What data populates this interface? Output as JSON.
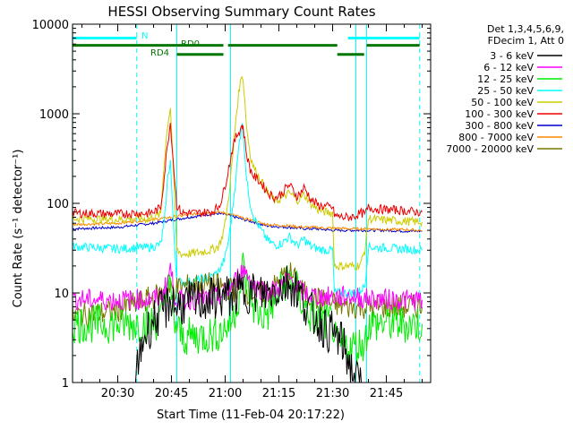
{
  "chart_data": {
    "type": "line",
    "title": "HESSI Observing Summary Count Rates",
    "xlabel": "Start Time (11-Feb-04 20:17:22)",
    "ylabel": "Count Rate (s⁻¹ detector⁻¹)",
    "x_ticks": [
      "20:30",
      "20:45",
      "21:00",
      "21:15",
      "21:30",
      "21:45"
    ],
    "x_tick_minutes": [
      30,
      45,
      60,
      75,
      90,
      105
    ],
    "xlim_minutes": [
      17.37,
      117.37
    ],
    "y_scale": "log",
    "ylim": [
      1,
      10000
    ],
    "y_ticks": [
      "1",
      "10",
      "100",
      "1000",
      "10000"
    ],
    "y_tick_values": [
      1,
      10,
      100,
      1000,
      10000
    ],
    "grid": false,
    "legend": {
      "placement": "right",
      "header": [
        "Det 1,3,4,5,6,9,",
        "FDecim 1, Att 0"
      ],
      "entries": [
        "3 - 6 keV",
        "6 - 12 keV",
        "12 - 25 keV",
        "25 - 50 keV",
        "50 - 100 keV",
        "100 - 300 keV",
        "300 - 800 keV",
        "800 - 7000 keV",
        "7000 - 20000 keV"
      ]
    },
    "colors": {
      "3 - 6 keV": "#000000",
      "6 - 12 keV": "#ff00ff",
      "12 - 25 keV": "#00ee00",
      "25 - 50 keV": "#00ffff",
      "50 - 100 keV": "#cccc00",
      "100 - 300 keV": "#ee0000",
      "300 - 800 keV": "#0000cc",
      "800 - 7000 keV": "#ff8800",
      "7000 - 20000 keV": "#777700",
      "cyan_bar": "#00ffff",
      "green_bar": "#007700"
    },
    "flag_labels": [
      "N",
      "RD0",
      "RD4"
    ],
    "flag_bars": [
      {
        "label": "N",
        "color": "#00ffff",
        "segments": [
          [
            17.4,
            35.3
          ],
          [
            94.3,
            114.3
          ]
        ],
        "level": 7000
      },
      {
        "label": "RD0",
        "color": "#007700",
        "segments": [
          [
            17.4,
            59.5
          ],
          [
            60.8,
            91.3
          ],
          [
            99.5,
            114.3
          ]
        ],
        "level": 5800
      },
      {
        "label": "RD4",
        "color": "#007700",
        "segments": [
          [
            46.5,
            59.5
          ],
          [
            91.3,
            98.8
          ]
        ],
        "level": 4600
      }
    ],
    "vlines_cyan_dashed_minutes": [
      35.3,
      114.3
    ],
    "vlines_cyan_solid_minutes": [
      17.4,
      46.5,
      61.5,
      96.5,
      99.5
    ],
    "series": [
      {
        "name": "100 - 300 keV",
        "x": [
          17.4,
          30,
          35,
          38,
          40,
          42,
          43,
          44,
          44.7,
          45.5,
          46.5,
          48,
          52,
          56,
          58,
          59,
          60,
          61,
          62,
          63,
          64,
          64.7,
          65,
          65.5,
          66,
          67,
          68,
          70,
          72,
          74,
          76,
          77,
          78,
          79,
          80,
          81,
          82,
          83,
          84,
          86,
          88,
          90,
          90.5,
          91,
          93,
          95,
          96,
          97,
          98,
          99,
          100,
          102,
          105,
          108,
          111,
          114,
          115
        ],
        "y": [
          78,
          76,
          78,
          77,
          80,
          90,
          200,
          500,
          800,
          300,
          95,
          78,
          78,
          80,
          90,
          110,
          160,
          250,
          400,
          550,
          650,
          750,
          700,
          500,
          350,
          240,
          200,
          170,
          130,
          115,
          130,
          150,
          160,
          140,
          120,
          130,
          150,
          130,
          110,
          95,
          92,
          90,
          75,
          72,
          70,
          70,
          72,
          75,
          78,
          75,
          90,
          87,
          85,
          84,
          82,
          80,
          80
        ]
      },
      {
        "name": "50 - 100 keV",
        "x": [
          17.4,
          30,
          35,
          38,
          40,
          42,
          43,
          44,
          44.7,
          45.5,
          46.5,
          48,
          52,
          56,
          58,
          59,
          60,
          61,
          62,
          63,
          64,
          64.7,
          65,
          65.5,
          66,
          67,
          68,
          70,
          72,
          74,
          76,
          77,
          78,
          79,
          80,
          81,
          82,
          83,
          84,
          86,
          88,
          90,
          90.5,
          91,
          93,
          95,
          96,
          97,
          98,
          99,
          100,
          102,
          105,
          108,
          111,
          114,
          115
        ],
        "y": [
          68,
          66,
          68,
          67,
          70,
          75,
          300,
          800,
          1200,
          250,
          30,
          27,
          28,
          30,
          33,
          40,
          60,
          120,
          300,
          900,
          2000,
          2800,
          2400,
          1400,
          700,
          350,
          250,
          180,
          130,
          105,
          115,
          125,
          130,
          120,
          108,
          115,
          125,
          112,
          98,
          85,
          80,
          78,
          20,
          20,
          20,
          20,
          20,
          20,
          22,
          30,
          68,
          66,
          65,
          64,
          63,
          62,
          62
        ]
      },
      {
        "name": "25 - 50 keV",
        "x": [
          17.4,
          30,
          35,
          38,
          40,
          42,
          43,
          44,
          44.7,
          45.5,
          46.5,
          48,
          52,
          56,
          58,
          59,
          60,
          61,
          62,
          63,
          64,
          64.7,
          65,
          65.5,
          66,
          67,
          68,
          70,
          72,
          74,
          76,
          77,
          78,
          79,
          80,
          81,
          82,
          83,
          84,
          86,
          88,
          90,
          90.5,
          91,
          93,
          95,
          96,
          97,
          98,
          99,
          100,
          102,
          105,
          108,
          111,
          114,
          115
        ],
        "y": [
          33,
          31,
          32,
          32,
          33,
          35,
          60,
          200,
          300,
          60,
          14,
          13,
          14,
          15,
          17,
          20,
          25,
          40,
          80,
          200,
          500,
          800,
          650,
          350,
          180,
          100,
          70,
          50,
          38,
          34,
          36,
          40,
          42,
          38,
          34,
          36,
          40,
          36,
          33,
          31,
          30,
          30,
          10,
          10,
          10,
          10,
          10,
          10,
          11,
          12,
          33,
          32,
          32,
          31,
          31,
          30,
          30
        ]
      },
      {
        "name": "300 - 800 keV",
        "x": [
          17.4,
          30,
          35,
          40,
          45,
          50,
          55,
          58,
          60,
          63,
          65,
          68,
          70,
          72,
          75,
          78,
          80,
          83,
          85,
          88,
          90,
          95,
          100,
          105,
          110,
          114,
          115
        ],
        "y": [
          52,
          54,
          57,
          60,
          65,
          70,
          75,
          77,
          75,
          70,
          66,
          62,
          58,
          56,
          55,
          54,
          53,
          52,
          52,
          51,
          50,
          50,
          50,
          50,
          49,
          49,
          49
        ]
      },
      {
        "name": "800 - 7000 keV",
        "x": [
          17.4,
          30,
          35,
          40,
          45,
          50,
          55,
          58,
          60,
          63,
          65,
          68,
          70,
          72,
          75,
          78,
          80,
          83,
          85,
          88,
          90,
          95,
          100,
          105,
          110,
          114,
          115
        ],
        "y": [
          58,
          60,
          63,
          66,
          70,
          75,
          79,
          80,
          78,
          73,
          68,
          64,
          60,
          58,
          57,
          56,
          55,
          54,
          54,
          53,
          53,
          52,
          52,
          51,
          51,
          50,
          50
        ]
      },
      {
        "name": "6 - 12 keV",
        "x": [
          17.4,
          30,
          35,
          38,
          40,
          42,
          43,
          44,
          44.7,
          45.5,
          46.5,
          48,
          52,
          56,
          58,
          59,
          60,
          61,
          62,
          63,
          64,
          65,
          66,
          67,
          68,
          70,
          72,
          74,
          76,
          77,
          78,
          79,
          80,
          81,
          82,
          83,
          84,
          86,
          88,
          90,
          92,
          95,
          98,
          100,
          105,
          110,
          115
        ],
        "y": [
          8.5,
          8.3,
          8.5,
          8.4,
          8.6,
          9,
          11,
          14,
          20,
          11,
          8.5,
          8.3,
          8.5,
          8.7,
          9,
          9.5,
          10,
          11,
          12,
          14,
          16,
          18,
          17,
          14,
          12,
          11,
          10.5,
          10.8,
          12,
          13.5,
          14.5,
          13,
          11.5,
          10.5,
          10,
          9.6,
          9.3,
          9.2,
          9.1,
          9,
          9,
          9.2,
          8.8,
          8.6,
          8.5,
          8.4,
          8.3
        ]
      },
      {
        "name": "7000 - 20000 keV",
        "x": [
          17.4,
          22,
          26,
          30,
          35,
          40,
          45,
          50,
          55,
          58,
          60,
          62,
          65,
          68,
          70,
          72,
          74,
          76,
          78,
          80,
          82,
          84,
          86,
          88,
          90,
          92,
          95,
          100,
          105,
          110,
          115
        ],
        "y": [
          5.5,
          5.8,
          6,
          6.5,
          7.5,
          9,
          11,
          12,
          12.5,
          12,
          11.5,
          11,
          10.5,
          10,
          10,
          10.5,
          12,
          15,
          17,
          13,
          10,
          9,
          8.5,
          8,
          7.5,
          7.2,
          7,
          7,
          7,
          7,
          7
        ]
      },
      {
        "name": "3 - 6 keV",
        "x": [
          35,
          37,
          40,
          42,
          44,
          45,
          46,
          48,
          52,
          56,
          58,
          60,
          62,
          64,
          66,
          68,
          70,
          72,
          74,
          76,
          78,
          80,
          82,
          84,
          86,
          88,
          90,
          92,
          93,
          94,
          95,
          96,
          97,
          98
        ],
        "y": [
          1,
          3,
          5,
          6,
          7,
          9,
          7,
          7.5,
          8,
          8.5,
          9,
          9,
          9.5,
          10,
          10.5,
          10,
          9.5,
          10,
          11,
          12,
          13,
          11,
          8,
          6,
          5,
          4,
          3.5,
          3,
          2.5,
          2,
          1.5,
          1.2,
          1,
          1
        ]
      },
      {
        "name": "12 - 25 keV",
        "x": [
          17.4,
          30,
          35,
          40,
          42,
          44,
          45,
          46,
          48,
          52,
          56,
          58,
          60,
          62,
          64,
          65,
          66,
          68,
          70,
          72,
          74,
          76,
          78,
          80,
          82,
          84,
          86,
          88,
          90,
          91,
          93,
          95,
          97,
          99,
          100,
          102,
          105,
          110,
          115
        ],
        "y": [
          4.5,
          4.5,
          4.6,
          4.6,
          5,
          15,
          8,
          4.5,
          3.2,
          3.3,
          3.4,
          3.6,
          4,
          5,
          10,
          20,
          12,
          7,
          5.5,
          6,
          8,
          12,
          15,
          11,
          7,
          5.5,
          5,
          4.8,
          4.7,
          2.5,
          2.5,
          2.5,
          2.6,
          2.8,
          4.5,
          4.5,
          4.6,
          4.5,
          4.5
        ]
      }
    ]
  }
}
